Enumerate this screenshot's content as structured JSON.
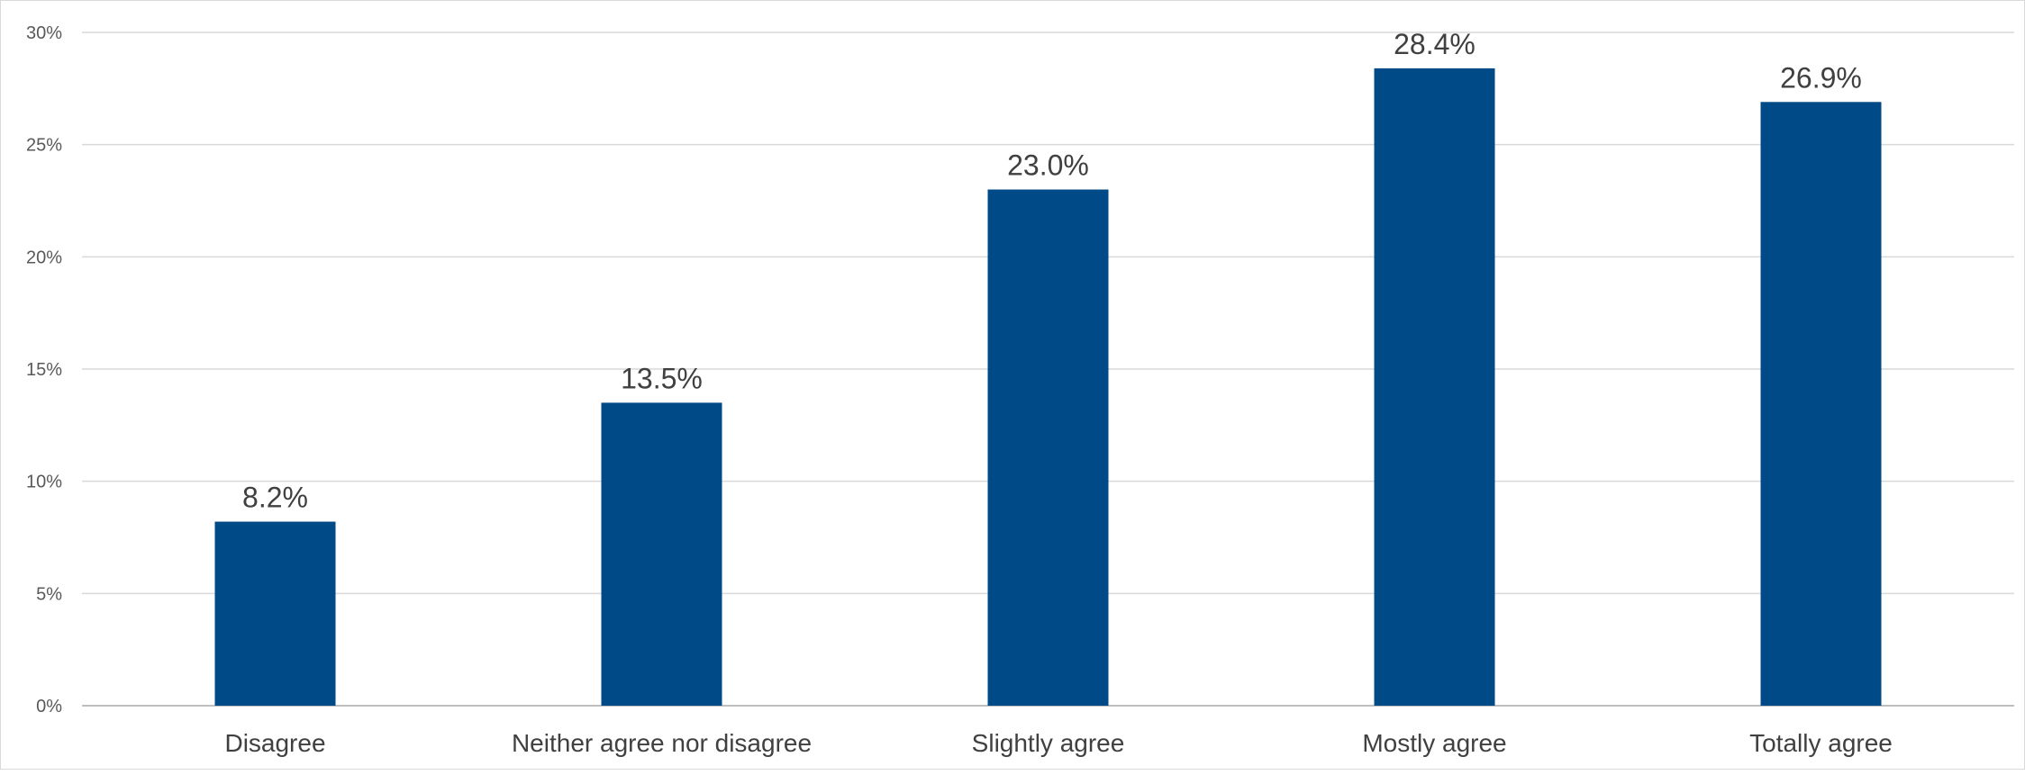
{
  "chart_data": {
    "type": "bar",
    "categories": [
      "Disagree",
      "Neither agree nor disagree",
      "Slightly agree",
      "Mostly agree",
      "Totally agree"
    ],
    "values": [
      8.2,
      13.5,
      23.0,
      28.4,
      26.9
    ],
    "data_labels": [
      "8.2%",
      "13.5%",
      "23.0%",
      "28.4%",
      "26.9%"
    ],
    "ylim": [
      0,
      30
    ],
    "y_ticks": [
      0,
      5,
      10,
      15,
      20,
      25,
      30
    ],
    "y_tick_labels": [
      "0%",
      "5%",
      "10%",
      "15%",
      "20%",
      "25%",
      "30%"
    ],
    "title": "",
    "xlabel": "",
    "ylabel": "",
    "grid": true,
    "legend": "none",
    "bar_color": "#004a87"
  }
}
